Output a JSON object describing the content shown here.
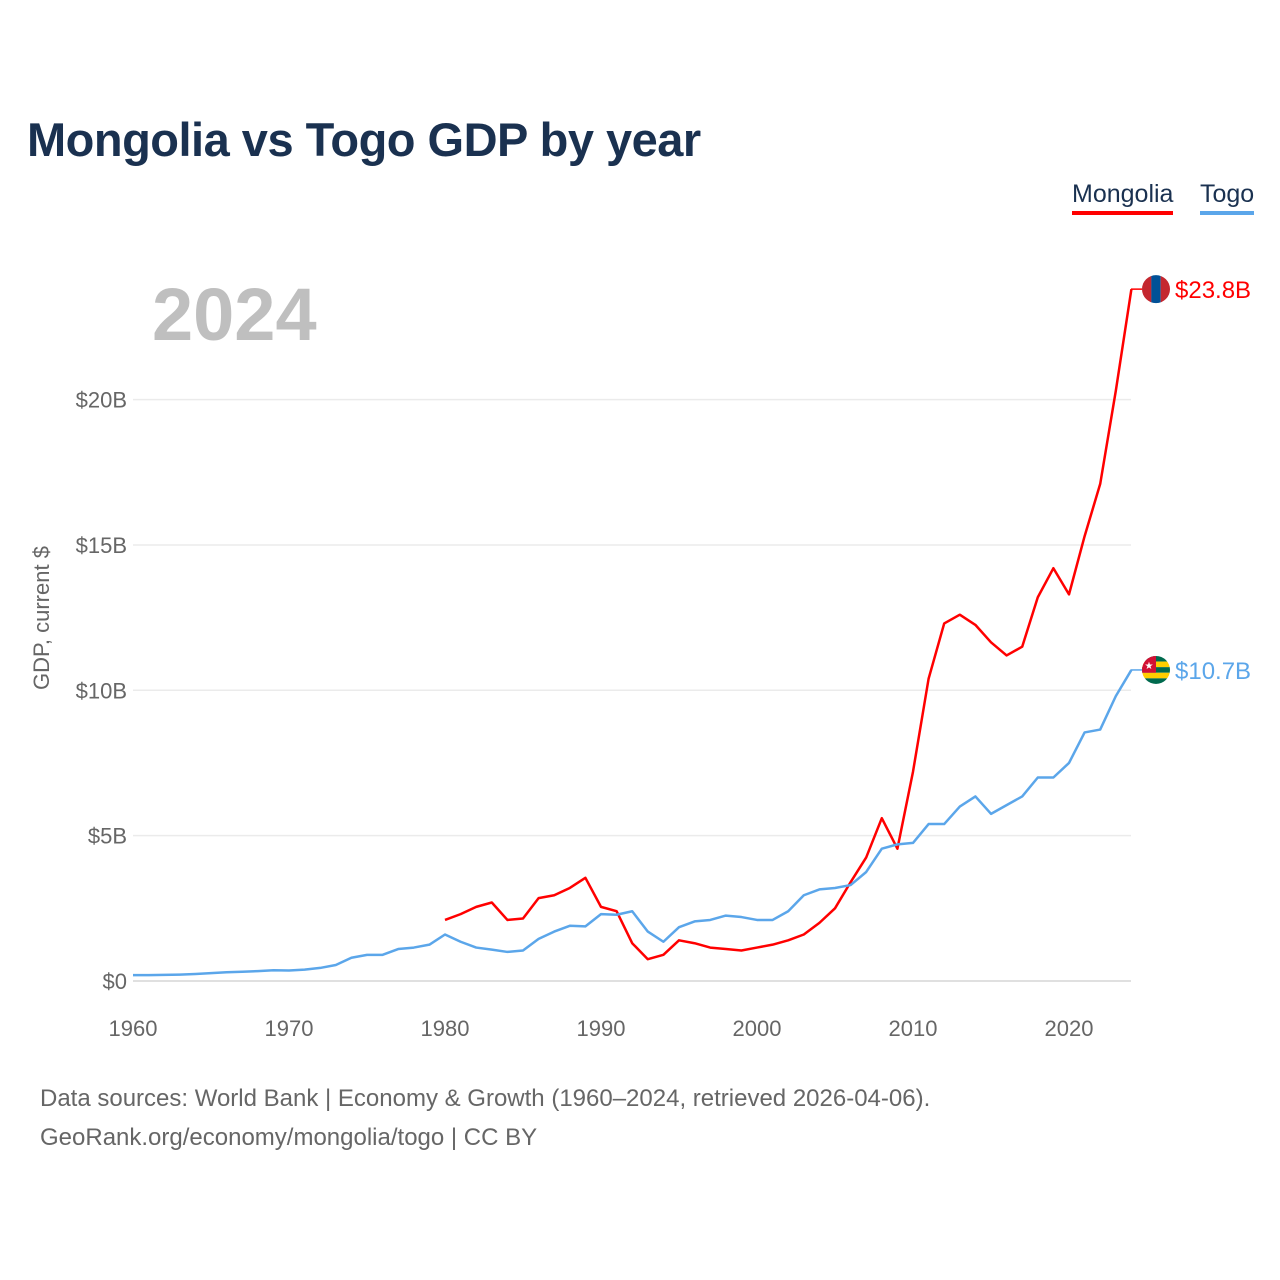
{
  "title": "Mongolia vs Togo GDP by year",
  "year_label": "2024",
  "source_line1": "Data sources: World Bank | Economy & Growth (1960–2024, retrieved 2026-04-06).",
  "source_line2": "GeoRank.org/economy/mongolia/togo | CC BY",
  "chart_data": {
    "type": "line",
    "title": "Mongolia vs Togo GDP by year",
    "xlabel": "",
    "ylabel": "GDP, current $",
    "xlim": [
      1960,
      2024
    ],
    "ylim": [
      0,
      25
    ],
    "x_ticks": [
      1960,
      1970,
      1980,
      1990,
      2000,
      2010,
      2020
    ],
    "y_ticks": [
      0,
      5,
      10,
      15,
      20
    ],
    "y_tick_labels": [
      "$0",
      "$5B",
      "$10B",
      "$15B",
      "$20B"
    ],
    "legend": "top-right",
    "grid": true,
    "series": [
      {
        "name": "Mongolia",
        "color": "#ff0000",
        "end_label": "$23.8B",
        "start_year": 1980,
        "values": [
          2.1,
          2.3,
          2.55,
          2.7,
          2.1,
          2.15,
          2.85,
          2.95,
          3.2,
          3.55,
          2.55,
          2.4,
          1.3,
          0.75,
          0.9,
          1.4,
          1.3,
          1.15,
          1.1,
          1.05,
          1.15,
          1.25,
          1.4,
          1.6,
          2.0,
          2.5,
          3.4,
          4.25,
          5.6,
          4.55,
          7.2,
          10.4,
          12.3,
          12.6,
          12.25,
          11.65,
          11.2,
          11.5,
          13.2,
          14.2,
          13.3,
          15.3,
          17.1,
          20.3,
          23.8
        ]
      },
      {
        "name": "Togo",
        "color": "#5ba6ea",
        "end_label": "$10.7B",
        "start_year": 1960,
        "values": [
          0.2,
          0.2,
          0.21,
          0.22,
          0.24,
          0.27,
          0.3,
          0.32,
          0.34,
          0.37,
          0.36,
          0.39,
          0.45,
          0.55,
          0.8,
          0.9,
          0.9,
          1.1,
          1.15,
          1.25,
          1.6,
          1.35,
          1.15,
          1.08,
          1.0,
          1.05,
          1.45,
          1.7,
          1.9,
          1.88,
          2.3,
          2.28,
          2.4,
          1.7,
          1.35,
          1.85,
          2.05,
          2.1,
          2.25,
          2.2,
          2.1,
          2.1,
          2.4,
          2.95,
          3.15,
          3.2,
          3.3,
          3.75,
          4.55,
          4.7,
          4.75,
          5.4,
          5.4,
          6.0,
          6.35,
          5.75,
          6.05,
          6.35,
          7.0,
          7.0,
          7.5,
          8.55,
          8.65,
          9.8,
          10.7
        ]
      }
    ]
  }
}
